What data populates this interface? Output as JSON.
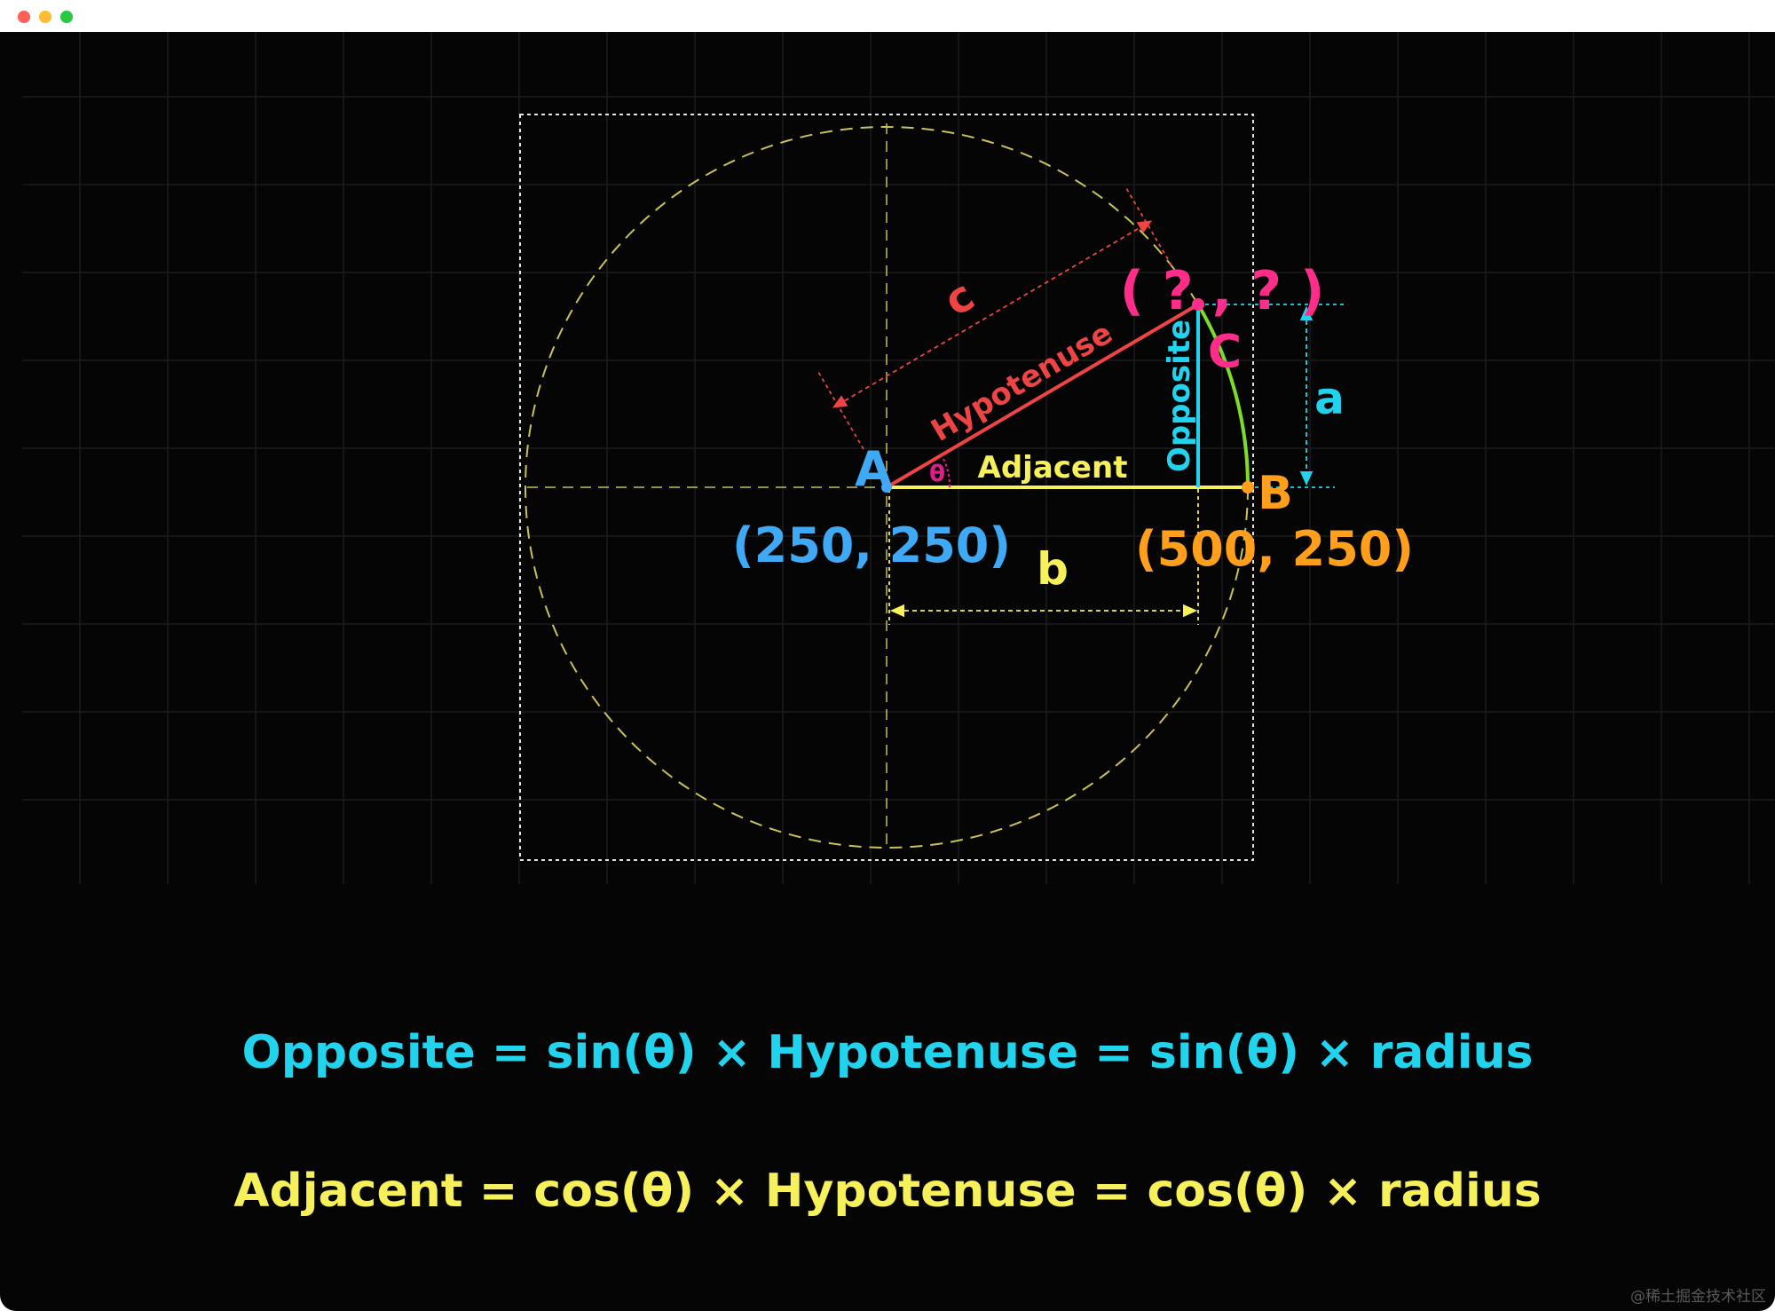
{
  "window": {
    "controls": [
      "close",
      "minimize",
      "zoom"
    ]
  },
  "diagram": {
    "points": {
      "a": {
        "label": "A",
        "coords": "(250, 250)",
        "color": "#3fa9f5"
      },
      "b": {
        "label": "B",
        "coords": "(500, 250)",
        "color": "#ff9f1c"
      },
      "c": {
        "label": "C",
        "coords": "( ? , ? )",
        "color": "#ff2d8a"
      }
    },
    "sides": {
      "hypotenuse": {
        "label": "Hypotenuse",
        "color": "#ef4444"
      },
      "adjacent": {
        "label": "Adjacent",
        "color": "#f6f05a"
      },
      "opposite": {
        "label": "Opposite",
        "color": "#22d3ee"
      }
    },
    "dimensions": {
      "c": {
        "label": "c",
        "color": "#ef4444"
      },
      "a": {
        "label": "a",
        "color": "#22d3ee"
      },
      "b": {
        "label": "b",
        "color": "#f6f05a"
      }
    },
    "angle": {
      "label": "θ",
      "color": "#e11d8c"
    },
    "colors": {
      "circle": "#c9c25a",
      "frame": "#e5e5e5",
      "arc": "#7ddc2a",
      "grid": "#1c1c1c"
    }
  },
  "formulas": {
    "sin": "Opposite = sin(θ) × Hypotenuse = sin(θ) × radius",
    "cos": "Adjacent = cos(θ) × Hypotenuse = cos(θ) × radius",
    "sin_color": "#22d3ee",
    "cos_color": "#f6f05a"
  },
  "watermark": "@稀土掘金技术社区"
}
